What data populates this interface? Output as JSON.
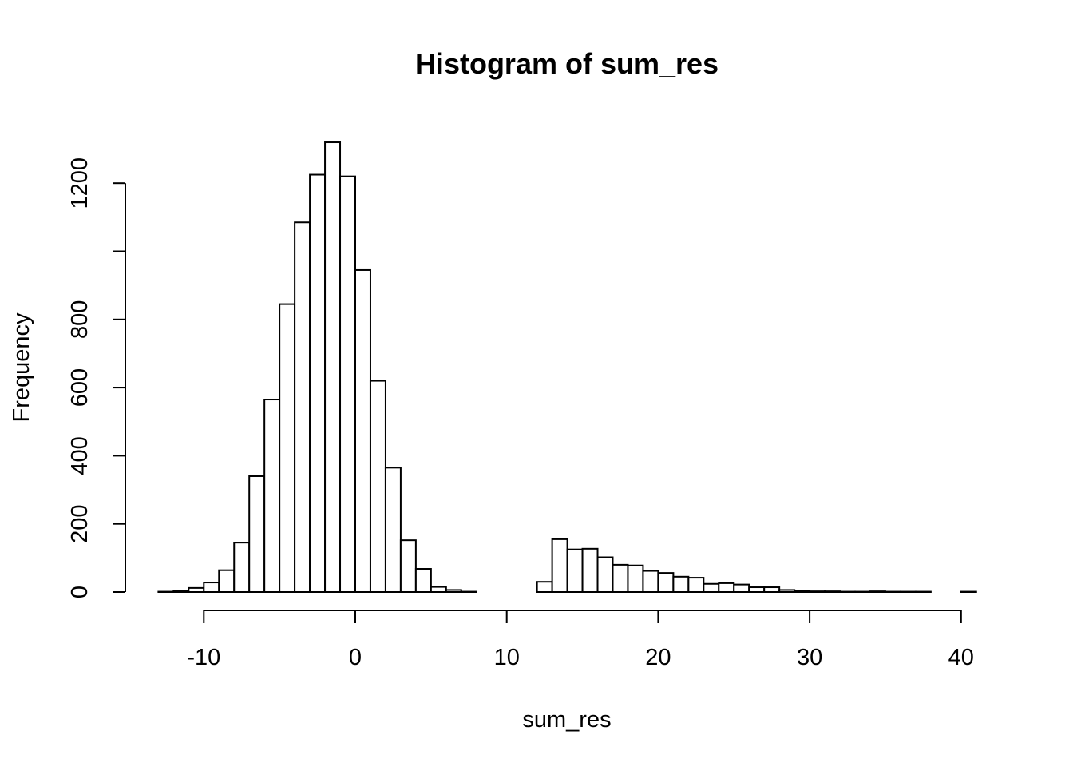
{
  "chart_data": {
    "type": "bar",
    "title": "Histogram of sum_res",
    "xlabel": "sum_res",
    "ylabel": "Frequency",
    "xlim": [
      -13,
      41
    ],
    "ylim": [
      0,
      1320
    ],
    "bin_width": 1,
    "bin_starts": [
      -13,
      -12,
      -11,
      -10,
      -9,
      -8,
      -7,
      -6,
      -5,
      -4,
      -3,
      -2,
      -1,
      0,
      1,
      2,
      3,
      4,
      5,
      6,
      7,
      8,
      9,
      10,
      11,
      12,
      13,
      14,
      15,
      16,
      17,
      18,
      19,
      20,
      21,
      22,
      23,
      24,
      25,
      26,
      27,
      28,
      29,
      30,
      31,
      32,
      33,
      34,
      35,
      36,
      37,
      38,
      39,
      40
    ],
    "values": [
      1,
      4,
      12,
      28,
      64,
      145,
      340,
      565,
      845,
      1085,
      1225,
      1320,
      1220,
      945,
      620,
      365,
      152,
      68,
      15,
      6,
      1,
      0,
      0,
      0,
      0,
      30,
      155,
      125,
      127,
      102,
      80,
      78,
      62,
      56,
      45,
      42,
      24,
      26,
      22,
      14,
      14,
      6,
      4,
      2,
      2,
      1,
      1,
      2,
      1,
      1,
      1,
      0,
      0,
      1
    ],
    "x_ticks": [
      -10,
      0,
      10,
      20,
      30,
      40
    ],
    "x_tick_labels": [
      "-10",
      "0",
      "10",
      "20",
      "30",
      "40"
    ],
    "y_ticks": [
      0,
      200,
      400,
      600,
      800,
      1000,
      1200
    ],
    "y_tick_labels": [
      "0",
      "200",
      "400",
      "600",
      "800",
      "",
      "1200"
    ],
    "grid": false
  }
}
